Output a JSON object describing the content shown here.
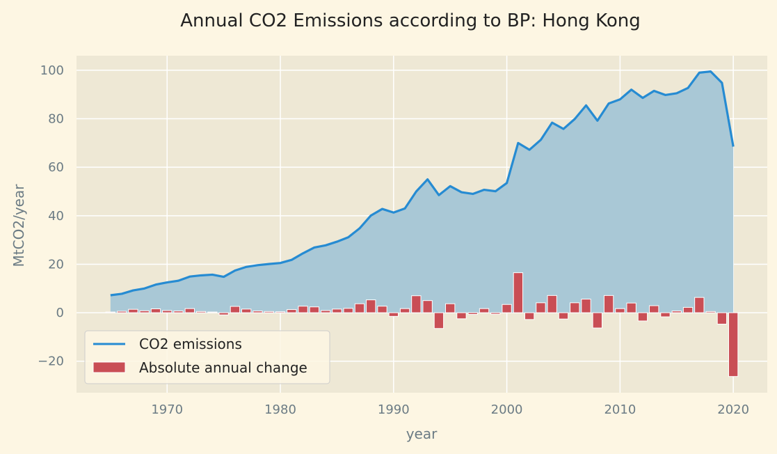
{
  "chart_data": {
    "type": "line",
    "title": "Annual CO2 Emissions according to BP: Hong Kong",
    "xlabel": "year",
    "ylabel": "MtCO2/year",
    "xlim": [
      1962,
      2023
    ],
    "ylim": [
      -33,
      106
    ],
    "xticks": [
      1970,
      1980,
      1990,
      2000,
      2010,
      2020
    ],
    "yticks": [
      -20,
      0,
      20,
      40,
      60,
      80,
      100
    ],
    "ytick_labels": [
      "−20",
      "0",
      "20",
      "40",
      "60",
      "80",
      "100"
    ],
    "grid": true,
    "legend_position": "lower-left",
    "x": [
      1965,
      1966,
      1967,
      1968,
      1969,
      1970,
      1971,
      1972,
      1973,
      1974,
      1975,
      1976,
      1977,
      1978,
      1979,
      1980,
      1981,
      1982,
      1983,
      1984,
      1985,
      1986,
      1987,
      1988,
      1989,
      1990,
      1991,
      1992,
      1993,
      1994,
      1995,
      1996,
      1997,
      1998,
      1999,
      2000,
      2001,
      2002,
      2003,
      2004,
      2005,
      2006,
      2007,
      2008,
      2009,
      2010,
      2011,
      2012,
      2013,
      2014,
      2015,
      2016,
      2017,
      2018,
      2019,
      2020
    ],
    "series": [
      {
        "name": "CO2 emissions",
        "kind": "line-area",
        "color": "#268bd2",
        "fill_color": "#a9c8d6",
        "values": [
          7.2,
          7.8,
          9.2,
          10.0,
          11.6,
          12.5,
          13.2,
          14.9,
          15.4,
          15.7,
          14.8,
          17.4,
          18.9,
          19.6,
          20.1,
          20.5,
          21.8,
          24.5,
          26.9,
          27.8,
          29.3,
          31.1,
          34.8,
          40.1,
          42.8,
          41.3,
          43.0,
          50.0,
          55.0,
          48.5,
          52.2,
          49.7,
          49.0,
          50.7,
          50.1,
          53.5,
          70.0,
          67.2,
          71.3,
          78.4,
          75.8,
          79.9,
          85.5,
          79.2,
          86.3,
          88.0,
          92.0,
          88.6,
          91.5,
          89.8,
          90.5,
          92.7,
          99.0,
          99.5,
          94.8,
          68.5
        ]
      },
      {
        "name": "Absolute annual change",
        "kind": "bar",
        "color": "#c94e55",
        "values": [
          0.3,
          0.6,
          1.4,
          0.8,
          1.6,
          0.9,
          0.7,
          1.7,
          0.5,
          0.3,
          -0.9,
          2.6,
          1.5,
          0.7,
          0.5,
          0.4,
          1.3,
          2.7,
          2.4,
          0.9,
          1.5,
          1.8,
          3.7,
          5.3,
          2.7,
          -1.5,
          1.7,
          7.0,
          5.0,
          -6.5,
          3.7,
          -2.5,
          -0.7,
          1.7,
          -0.6,
          3.4,
          16.5,
          -2.8,
          4.1,
          7.1,
          -2.6,
          4.1,
          5.6,
          -6.3,
          7.1,
          1.7,
          4.0,
          -3.4,
          2.9,
          -1.7,
          0.7,
          2.2,
          6.3,
          0.5,
          -4.7,
          -26.3
        ]
      }
    ]
  }
}
